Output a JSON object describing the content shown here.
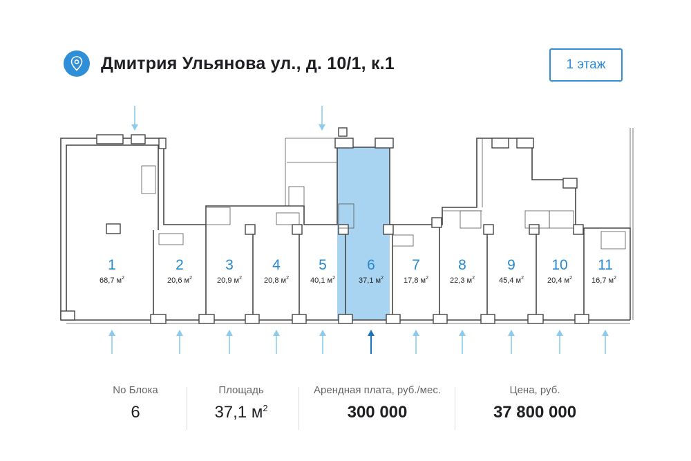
{
  "header": {
    "address": "Дмитрия Ульянова ул., д. 10/1, к.1",
    "floor_button": "1 этаж",
    "icon": "location-pin-icon"
  },
  "units": [
    {
      "number": "1",
      "area": "68,7 м",
      "selected": false
    },
    {
      "number": "2",
      "area": "20,6 м",
      "selected": false
    },
    {
      "number": "3",
      "area": "20,9 м",
      "selected": false
    },
    {
      "number": "4",
      "area": "20,8 м",
      "selected": false
    },
    {
      "number": "5",
      "area": "40,1 м",
      "selected": false
    },
    {
      "number": "6",
      "area": "37,1 м",
      "selected": true
    },
    {
      "number": "7",
      "area": "17,8 м",
      "selected": false
    },
    {
      "number": "8",
      "area": "22,3 м",
      "selected": false
    },
    {
      "number": "9",
      "area": "45,4 м",
      "selected": false
    },
    {
      "number": "10",
      "area": "20,4 м",
      "selected": false
    },
    {
      "number": "11",
      "area": "16,7 м",
      "selected": false
    }
  ],
  "area_unit_sup": "2",
  "colors": {
    "accent": "#2f8ed8",
    "selected_fill": "#a9d4f1",
    "arrow": "#8ccbec",
    "arrow_active": "#1b75bb"
  },
  "info": {
    "block_label": "No Блока",
    "block_value": "6",
    "area_label": "Площадь",
    "area_value": "37,1 м",
    "area_sup": "2",
    "rent_label": "Арендная плата, руб./мес.",
    "rent_value": "300 000",
    "price_label": "Цена, руб.",
    "price_value": "37 800 000"
  }
}
